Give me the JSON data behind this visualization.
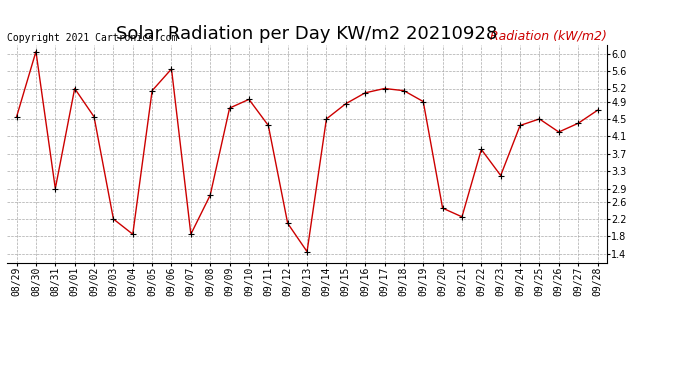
{
  "title": "Solar Radiation per Day KW/m2 20210928",
  "copyright_text": "Copyright 2021 Cartronics.com",
  "legend_label": "Radiation (kW/m2)",
  "dates": [
    "08/29",
    "08/30",
    "08/31",
    "09/01",
    "09/02",
    "09/03",
    "09/04",
    "09/05",
    "09/06",
    "09/07",
    "09/08",
    "09/09",
    "09/10",
    "09/11",
    "09/12",
    "09/13",
    "09/14",
    "09/15",
    "09/16",
    "09/17",
    "09/18",
    "09/19",
    "09/20",
    "09/21",
    "09/22",
    "09/23",
    "09/24",
    "09/25",
    "09/26",
    "09/27",
    "09/28"
  ],
  "values": [
    4.55,
    6.05,
    2.9,
    5.2,
    4.55,
    2.2,
    1.85,
    5.15,
    5.65,
    1.85,
    2.75,
    4.75,
    4.95,
    4.35,
    2.1,
    1.45,
    4.5,
    4.85,
    5.1,
    5.2,
    5.15,
    4.9,
    2.45,
    2.25,
    3.8,
    3.2,
    4.35,
    4.5,
    4.2,
    4.4,
    4.7
  ],
  "line_color": "#cc0000",
  "marker_color": "#000000",
  "grid_color": "#aaaaaa",
  "background_color": "#ffffff",
  "ylim": [
    1.2,
    6.2
  ],
  "yticks": [
    1.4,
    1.8,
    2.2,
    2.6,
    2.9,
    3.3,
    3.7,
    4.1,
    4.5,
    4.9,
    5.2,
    5.6,
    6.0
  ],
  "title_fontsize": 13,
  "legend_fontsize": 9,
  "copyright_fontsize": 7,
  "tick_fontsize": 7
}
